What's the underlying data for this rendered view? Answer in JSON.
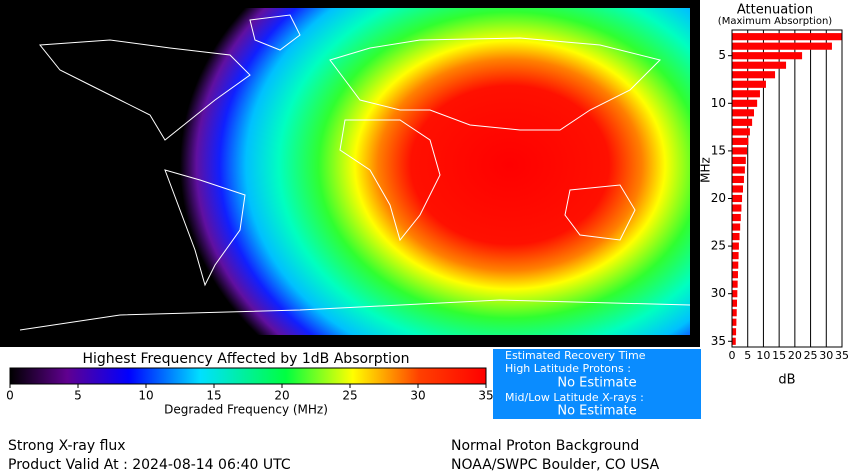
{
  "map": {
    "colorbar": {
      "title": "Highest Frequency Affected by 1dB Absorption",
      "xlabel": "Degraded Frequency (MHz)",
      "lim": [
        0,
        35
      ],
      "ticks": [
        0,
        5,
        10,
        15,
        20,
        25,
        30,
        35
      ]
    }
  },
  "chart_data": {
    "type": "bar",
    "title": "Attenuation",
    "subtitle": "(Maximum Absorption)",
    "xlabel": "dB",
    "ylabel": "MHz",
    "color": "#ff0000",
    "frequencies": [
      3,
      4,
      5,
      6,
      7,
      8,
      9,
      10,
      11,
      12,
      13,
      14,
      15,
      16,
      17,
      18,
      19,
      20,
      21,
      22,
      23,
      24,
      25,
      26,
      27,
      28,
      29,
      30,
      31,
      32,
      33,
      34,
      35
    ],
    "values": [
      35,
      31.8,
      22.3,
      17.2,
      13.7,
      10.8,
      8.9,
      8.0,
      7.0,
      6.4,
      5.7,
      5.2,
      4.8,
      4.4,
      4.1,
      3.8,
      3.5,
      3.2,
      3.0,
      2.8,
      2.6,
      2.4,
      2.2,
      2.1,
      2.0,
      1.9,
      1.8,
      1.7,
      1.6,
      1.5,
      1.4,
      1.3,
      1.2
    ],
    "xlim": [
      0,
      35
    ],
    "xticks": [
      0,
      5,
      10,
      15,
      20,
      25,
      30,
      35
    ],
    "ylim": [
      2.3,
      35.6
    ],
    "yticks": [
      5,
      10,
      15,
      20,
      25,
      30,
      35
    ],
    "grid": true
  },
  "recovery": {
    "title": "Estimated Recovery Time",
    "high_label": "High Latitude Protons :",
    "high_value": "No Estimate",
    "low_label": "Mid/Low Latitude X-rays :",
    "low_value": "No Estimate"
  },
  "footer": {
    "left_1": "Strong X-ray flux",
    "left_2": "Product Valid At : 2024-08-14 06:40 UTC",
    "right_1": "Normal Proton Background",
    "right_2": "NOAA/SWPC Boulder, CO USA"
  }
}
